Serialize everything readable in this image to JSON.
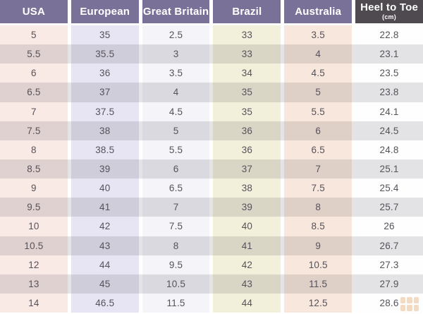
{
  "table": {
    "headers": [
      {
        "label": "USA"
      },
      {
        "label": "European"
      },
      {
        "label": "Great Britain"
      },
      {
        "label": "Brazil"
      },
      {
        "label": "Australia"
      },
      {
        "label": "Heel to Toe",
        "sublabel": "(cm)"
      }
    ],
    "rows": [
      [
        "5",
        "35",
        "2.5",
        "33",
        "3.5",
        "22.8"
      ],
      [
        "5.5",
        "35.5",
        "3",
        "33",
        "4",
        "23.1"
      ],
      [
        "6",
        "36",
        "3.5",
        "34",
        "4.5",
        "23.5"
      ],
      [
        "6.5",
        "37",
        "4",
        "35",
        "5",
        "23.8"
      ],
      [
        "7",
        "37.5",
        "4.5",
        "35",
        "5.5",
        "24.1"
      ],
      [
        "7.5",
        "38",
        "5",
        "36",
        "6",
        "24.5"
      ],
      [
        "8",
        "38.5",
        "5.5",
        "36",
        "6.5",
        "24.8"
      ],
      [
        "8.5",
        "39",
        "6",
        "37",
        "7",
        "25.1"
      ],
      [
        "9",
        "40",
        "6.5",
        "38",
        "7.5",
        "25.4"
      ],
      [
        "9.5",
        "41",
        "7",
        "39",
        "8",
        "25.7"
      ],
      [
        "10",
        "42",
        "7.5",
        "40",
        "8.5",
        "26"
      ],
      [
        "10.5",
        "43",
        "8",
        "41",
        "9",
        "26.7"
      ],
      [
        "12",
        "44",
        "9.5",
        "42",
        "10.5",
        "27.3"
      ],
      [
        "13",
        "45",
        "10.5",
        "43",
        "11.5",
        "27.9"
      ],
      [
        "14",
        "46.5",
        "11.5",
        "44",
        "12.5",
        "28.6"
      ]
    ],
    "colors": {
      "header_purple": "#7a7199",
      "header_dark": "#4e4a4f",
      "cell_text": "#56525a",
      "column_tints": [
        "#faeae6",
        "#e7e5f3",
        "#f5f4f9",
        "#f2f0da",
        "#f8e7dc",
        "#fefefe"
      ],
      "watermark_orange": "#e09a58"
    }
  }
}
